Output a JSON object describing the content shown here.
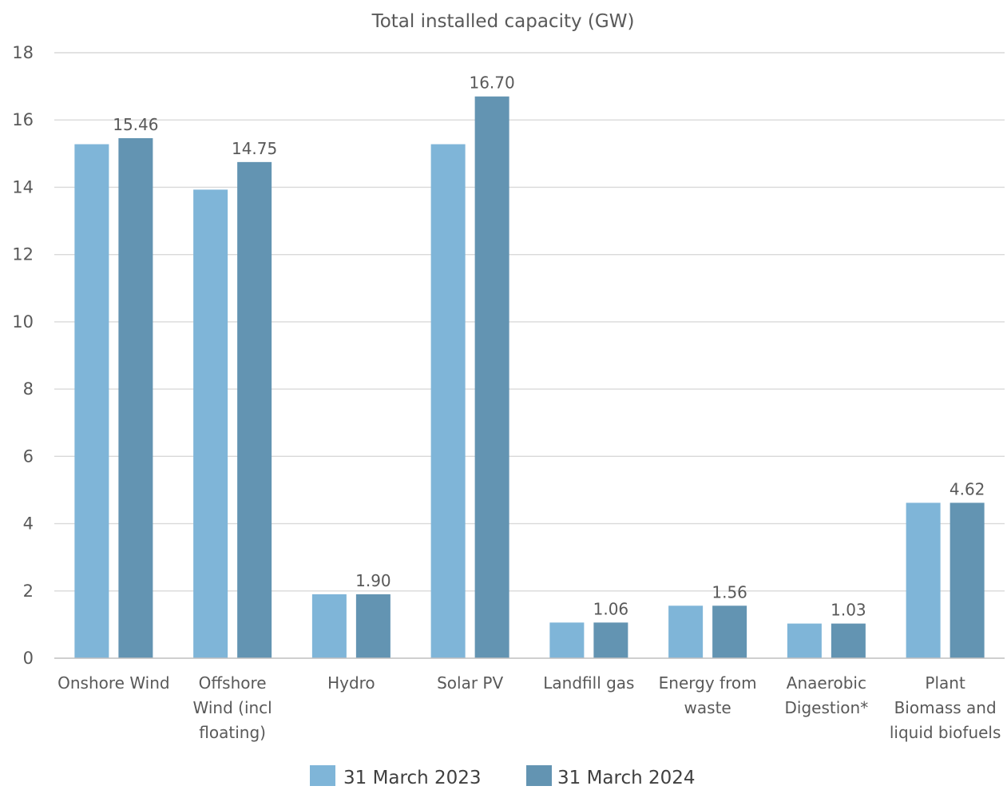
{
  "chart_data": {
    "type": "bar",
    "title": "Total installed capacity (GW)",
    "xlabel": "",
    "ylabel": "",
    "ylim": [
      0,
      18
    ],
    "yticks": [
      0,
      2,
      4,
      6,
      8,
      10,
      12,
      14,
      16,
      18
    ],
    "grid": true,
    "legend_position": "bottom",
    "categories": [
      [
        "Onshore Wind"
      ],
      [
        "Offshore",
        "Wind (incl",
        "floating)"
      ],
      [
        "Hydro"
      ],
      [
        "Solar PV"
      ],
      [
        "Landfill gas"
      ],
      [
        "Energy from",
        "waste"
      ],
      [
        "Anaerobic",
        "Digestion*"
      ],
      [
        "Plant",
        "Biomass and",
        "liquid biofuels"
      ]
    ],
    "series": [
      {
        "name": "31 March 2023",
        "color": "#7fb5d8",
        "values": [
          15.28,
          13.93,
          1.9,
          15.28,
          1.06,
          1.56,
          1.03,
          4.62
        ],
        "data_labels": [
          "",
          "",
          "",
          "",
          "",
          "",
          "",
          ""
        ]
      },
      {
        "name": "31 March 2024",
        "color": "#6394b2",
        "values": [
          15.46,
          14.75,
          1.9,
          16.7,
          1.06,
          1.56,
          1.03,
          4.62
        ],
        "data_labels": [
          "15.46",
          "14.75",
          "1.90",
          "16.70",
          "1.06",
          "1.56",
          "1.03",
          "4.62"
        ]
      }
    ]
  }
}
